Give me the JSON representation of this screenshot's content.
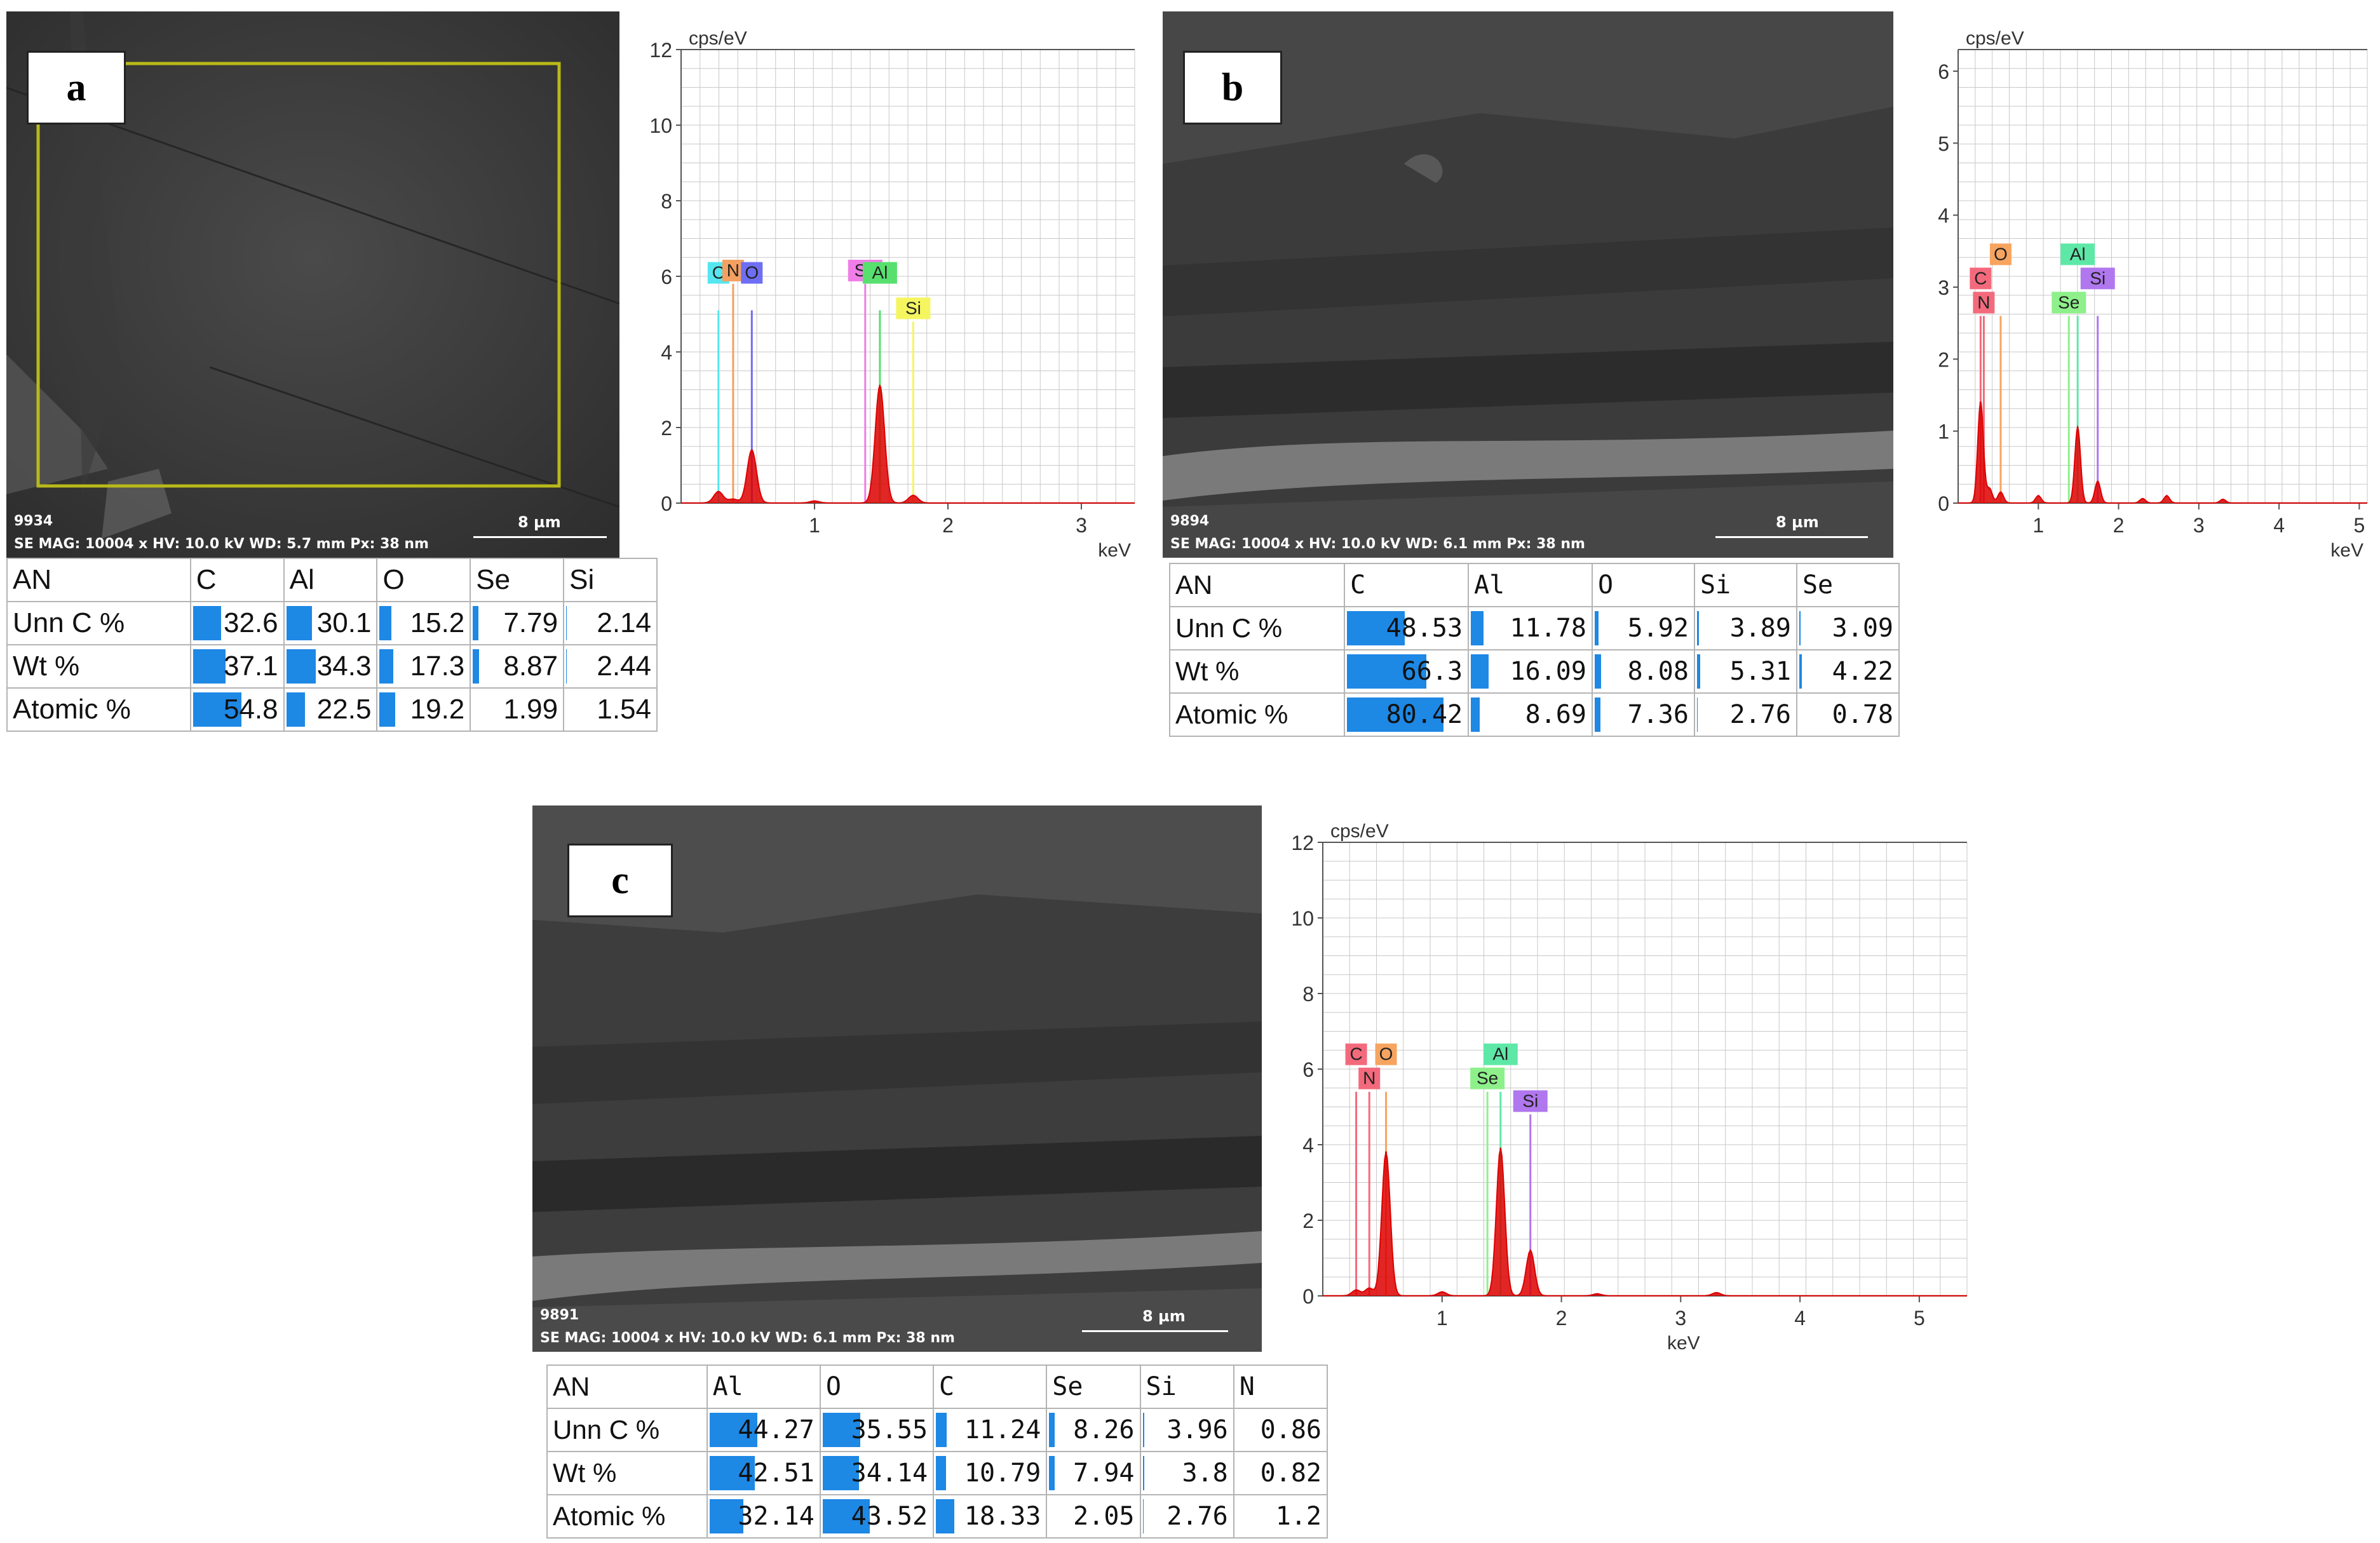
{
  "colors": {
    "spectrum": "#dd0000",
    "bar": "#1e88e5",
    "grid": "#c8c8c8"
  },
  "panels": [
    {
      "label": "a",
      "sem": {
        "id": "9934",
        "info": "SE  MAG: 10004 x  HV: 10.0 kV  WD: 5.7 mm  Px: 38 nm",
        "scale": "8 µm"
      },
      "table": {
        "columns": [
          "AN",
          "C",
          "Al",
          "O",
          "Se",
          "Si"
        ],
        "rows": [
          {
            "label": "Unn C %",
            "values": [
              "32.6",
              "30.1",
              "15.2",
              "7.79",
              "2.14"
            ]
          },
          {
            "label": "Wt %",
            "values": [
              "37.1",
              "34.3",
              "17.3",
              "8.87",
              "2.44"
            ]
          },
          {
            "label": "Atomic %",
            "values": [
              "54.8",
              "22.5",
              "19.2",
              "1.99",
              "1.54"
            ]
          }
        ]
      }
    },
    {
      "label": "b",
      "sem": {
        "id": "9894",
        "info": "SE  MAG: 10004 x  HV: 10.0 kV  WD: 6.1 mm  Px: 38 nm",
        "scale": "8 µm"
      },
      "table": {
        "columns": [
          "AN",
          "C",
          "Al",
          "O",
          "Si",
          "Se"
        ],
        "rows": [
          {
            "label": "Unn C %",
            "values": [
              "48.53",
              "11.78",
              "5.92",
              "3.89",
              "3.09"
            ]
          },
          {
            "label": "Wt %",
            "values": [
              "66.3",
              "16.09",
              "8.08",
              "5.31",
              "4.22"
            ]
          },
          {
            "label": "Atomic %",
            "values": [
              "80.42",
              "8.69",
              "7.36",
              "2.76",
              "0.78"
            ]
          }
        ]
      }
    },
    {
      "label": "c",
      "sem": {
        "id": "9891",
        "info": "SE  MAG: 10004 x  HV: 10.0 kV  WD: 6.1 mm  Px: 38 nm",
        "scale": "8 µm"
      },
      "table": {
        "columns": [
          "AN",
          "Al",
          "O",
          "C",
          "Se",
          "Si",
          "N"
        ],
        "rows": [
          {
            "label": "Unn C %",
            "values": [
              "44.27",
              "35.55",
              "11.24",
              "8.26",
              "3.96",
              "0.86"
            ]
          },
          {
            "label": "Wt %",
            "values": [
              "42.51",
              "34.14",
              "10.79",
              "7.94",
              "3.8",
              "0.82"
            ]
          },
          {
            "label": "Atomic %",
            "values": [
              "32.14",
              "43.52",
              "18.33",
              "2.05",
              "2.76",
              "1.2"
            ]
          }
        ]
      }
    }
  ],
  "chart_data": [
    {
      "type": "line",
      "ylabel": "cps/eV",
      "xlabel": "keV",
      "xlim": [
        0,
        3.4
      ],
      "ylim": [
        0,
        12
      ],
      "xticks": [
        "1",
        "2",
        "3"
      ],
      "yticks": [
        "0",
        "2",
        "4",
        "6",
        "8",
        "10",
        "12"
      ],
      "grid": true,
      "peaks": [
        {
          "x": 0.28,
          "y": 0.3
        },
        {
          "x": 0.39,
          "y": 0.1
        },
        {
          "x": 0.53,
          "y": 1.4
        },
        {
          "x": 1.0,
          "y": 0.05
        },
        {
          "x": 1.49,
          "y": 3.1
        },
        {
          "x": 1.74,
          "y": 0.2
        }
      ],
      "element_lines": [
        {
          "element": "C",
          "x": 0.28,
          "height": 5.1,
          "color": "#55e6f0",
          "row": 2
        },
        {
          "element": "N",
          "x": 0.39,
          "height": 5.8,
          "color": "#f4a060",
          "row": 1
        },
        {
          "element": "O",
          "x": 0.53,
          "height": 5.1,
          "color": "#6e6ef5",
          "row": 2
        },
        {
          "element": "Se",
          "x": 1.38,
          "height": 5.8,
          "color": "#f07de8",
          "row": 1
        },
        {
          "element": "Al",
          "x": 1.49,
          "height": 5.1,
          "color": "#57e06e",
          "row": 2
        },
        {
          "element": "Si",
          "x": 1.74,
          "height": 4.8,
          "color": "#f5f560",
          "row": 1
        }
      ]
    },
    {
      "type": "line",
      "ylabel": "cps/eV",
      "xlabel": "keV",
      "xlim": [
        0,
        5.1
      ],
      "ylim": [
        0,
        6.3
      ],
      "xticks": [
        "1",
        "2",
        "3",
        "4",
        "5"
      ],
      "yticks": [
        "0",
        "1",
        "2",
        "3",
        "4",
        "5",
        "6"
      ],
      "grid": true,
      "peaks": [
        {
          "x": 0.28,
          "y": 1.4
        },
        {
          "x": 0.39,
          "y": 0.2
        },
        {
          "x": 0.53,
          "y": 0.15
        },
        {
          "x": 1.0,
          "y": 0.1
        },
        {
          "x": 1.49,
          "y": 1.05
        },
        {
          "x": 1.74,
          "y": 0.3
        },
        {
          "x": 2.3,
          "y": 0.06
        },
        {
          "x": 2.6,
          "y": 0.1
        },
        {
          "x": 3.3,
          "y": 0.05
        }
      ],
      "element_lines": [
        {
          "element": "N",
          "x": 0.32,
          "height": 2.6,
          "color": "#f36a7c",
          "row": 1
        },
        {
          "element": "C",
          "x": 0.28,
          "height": 2.6,
          "color": "#f36a7c",
          "row": 2
        },
        {
          "element": "O",
          "x": 0.53,
          "height": 2.6,
          "color": "#f7a460",
          "row": 3
        },
        {
          "element": "Se",
          "x": 1.38,
          "height": 2.6,
          "color": "#8ef08a",
          "row": 1
        },
        {
          "element": "Al",
          "x": 1.49,
          "height": 2.6,
          "color": "#5ee8a8",
          "row": 3
        },
        {
          "element": "Si",
          "x": 1.74,
          "height": 2.6,
          "color": "#b077ee",
          "row": 2
        }
      ]
    },
    {
      "type": "line",
      "ylabel": "cps/eV",
      "xlabel": "keV",
      "xlim": [
        0,
        5.4
      ],
      "ylim": [
        0,
        12
      ],
      "xticks": [
        "1",
        "2",
        "3",
        "4",
        "5"
      ],
      "yticks": [
        "0",
        "2",
        "4",
        "6",
        "8",
        "10",
        "12"
      ],
      "grid": true,
      "peaks": [
        {
          "x": 0.28,
          "y": 0.15
        },
        {
          "x": 0.39,
          "y": 0.2
        },
        {
          "x": 0.53,
          "y": 3.8
        },
        {
          "x": 1.0,
          "y": 0.1
        },
        {
          "x": 1.49,
          "y": 3.9
        },
        {
          "x": 1.74,
          "y": 1.2
        },
        {
          "x": 2.3,
          "y": 0.05
        },
        {
          "x": 3.3,
          "y": 0.08
        }
      ],
      "element_lines": [
        {
          "element": "N",
          "x": 0.39,
          "height": 5.4,
          "color": "#f36a7c",
          "row": 1
        },
        {
          "element": "C",
          "x": 0.28,
          "height": 5.4,
          "color": "#f36a7c",
          "row": 2
        },
        {
          "element": "O",
          "x": 0.53,
          "height": 5.4,
          "color": "#f7a460",
          "row": 2
        },
        {
          "element": "Se",
          "x": 1.38,
          "height": 5.4,
          "color": "#8ef08a",
          "row": 1
        },
        {
          "element": "Al",
          "x": 1.49,
          "height": 5.4,
          "color": "#5ee8a8",
          "row": 2
        },
        {
          "element": "Si",
          "x": 1.74,
          "height": 4.8,
          "color": "#b077ee",
          "row": 1
        }
      ]
    }
  ]
}
